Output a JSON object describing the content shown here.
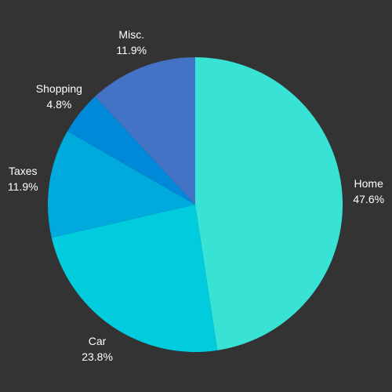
{
  "chart_data": {
    "type": "pie",
    "title": "",
    "labels_shown": "outside",
    "slices": [
      {
        "label": "Home",
        "value": 47.6,
        "display": "47.6%",
        "color": "#38e2d5"
      },
      {
        "label": "Car",
        "value": 23.8,
        "display": "23.8%",
        "color": "#00ccdd"
      },
      {
        "label": "Taxes",
        "value": 11.9,
        "display": "11.9%",
        "color": "#00aadd"
      },
      {
        "label": "Shopping",
        "value": 4.8,
        "display": "4.8%",
        "color": "#0088d9"
      },
      {
        "label": "Misc.",
        "value": 11.9,
        "display": "11.9%",
        "color": "#4472c4"
      }
    ],
    "start_angle_deg": 0,
    "direction": "clockwise"
  },
  "colors": {
    "background": "#333333",
    "label_text": "#ffffff"
  }
}
